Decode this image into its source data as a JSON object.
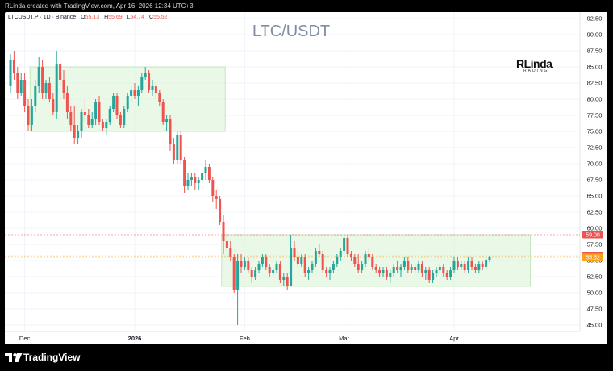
{
  "header": {
    "created_text": "RLinda created with TradingView.com, Apr 16, 2026 12:34 UTC+3"
  },
  "legend": {
    "symbol": "LTCUSDT.P · 1D · Binance",
    "open_label": "O",
    "open": "55.13",
    "high_label": "H",
    "high": "55.69",
    "low_label": "L",
    "low": "54.74",
    "close_label": "C",
    "close": "55.52"
  },
  "watermark": {
    "text": "LTC/USDT"
  },
  "logo": {
    "main": "RLinda",
    "sub": "RADING"
  },
  "brand": {
    "name": "TradingView",
    "icon": "tradingview-logo-icon"
  },
  "colors": {
    "up": "#26a69a",
    "down": "#ef5350",
    "zone": "#e1f5df",
    "zone_border": "#b9e3b5",
    "level_red": "#ef5350",
    "level_orange": "#f7a21b"
  },
  "chart_data": {
    "type": "candlestick",
    "title": "LTC/USDT",
    "symbol": "LTCUSDT.P",
    "interval": "1D",
    "exchange": "Binance",
    "ylim": [
      44,
      93.5
    ],
    "y_ticks": [
      "92.50",
      "90.00",
      "87.50",
      "85.00",
      "82.50",
      "80.00",
      "77.50",
      "75.00",
      "72.50",
      "70.00",
      "67.50",
      "65.00",
      "62.50",
      "60.00",
      "57.50",
      "55.00",
      "52.50",
      "50.00",
      "47.50",
      "45.00"
    ],
    "x_ticks": [
      {
        "label": "Dec",
        "index": 4
      },
      {
        "label": "2026",
        "index": 35
      },
      {
        "label": "Feb",
        "index": 66
      },
      {
        "label": "Mar",
        "index": 94
      },
      {
        "label": "Apr",
        "index": 125
      }
    ],
    "grid": true,
    "price_tags": [
      {
        "label": "59.00",
        "value": 59.0,
        "color": "#ef5350"
      },
      {
        "label": "55.71",
        "value": 55.71,
        "color": "#ef5350"
      },
      {
        "label": "55.52",
        "value": 55.52,
        "color": "#f7a21b"
      }
    ],
    "zones": [
      {
        "from_index": 6,
        "to_index": 60,
        "low": 75.0,
        "high": 85.0
      },
      {
        "from_index": 60,
        "to_index": 146,
        "low": 51.0,
        "high": 59.0
      }
    ],
    "candles": [
      [
        82.0,
        87.0,
        81.0,
        86.0
      ],
      [
        86.0,
        87.5,
        83.0,
        84.0
      ],
      [
        84.0,
        85.0,
        80.0,
        81.0
      ],
      [
        81.0,
        84.0,
        80.5,
        83.0
      ],
      [
        83.0,
        84.0,
        78.0,
        79.0
      ],
      [
        79.0,
        80.0,
        75.0,
        76.0
      ],
      [
        76.0,
        80.0,
        75.0,
        79.0
      ],
      [
        79.0,
        83.0,
        78.0,
        82.0
      ],
      [
        82.0,
        86.5,
        81.0,
        85.0
      ],
      [
        85.0,
        86.0,
        80.0,
        81.0
      ],
      [
        81.0,
        83.0,
        80.0,
        82.5
      ],
      [
        82.5,
        83.5,
        79.5,
        80.0
      ],
      [
        80.0,
        81.0,
        77.5,
        78.0
      ],
      [
        78.0,
        87.5,
        77.0,
        85.5
      ],
      [
        85.5,
        86.0,
        82.0,
        83.0
      ],
      [
        83.0,
        84.5,
        80.0,
        81.0
      ],
      [
        81.0,
        82.0,
        77.0,
        78.0
      ],
      [
        78.0,
        79.0,
        75.0,
        76.0
      ],
      [
        76.0,
        79.0,
        73.0,
        74.0
      ],
      [
        74.0,
        76.0,
        73.0,
        75.0
      ],
      [
        75.0,
        78.5,
        74.0,
        78.0
      ],
      [
        78.0,
        80.0,
        76.5,
        77.5
      ],
      [
        77.5,
        78.5,
        75.5,
        76.0
      ],
      [
        76.0,
        78.0,
        75.5,
        77.0
      ],
      [
        77.0,
        80.0,
        76.0,
        79.5
      ],
      [
        79.5,
        80.5,
        76.0,
        76.5
      ],
      [
        76.5,
        77.0,
        75.0,
        75.5
      ],
      [
        75.5,
        77.0,
        74.5,
        76.5
      ],
      [
        76.5,
        79.0,
        76.0,
        78.5
      ],
      [
        78.5,
        81.0,
        78.0,
        80.5
      ],
      [
        80.5,
        81.0,
        77.0,
        77.5
      ],
      [
        77.5,
        78.0,
        75.5,
        76.0
      ],
      [
        76.0,
        79.0,
        75.5,
        78.5
      ],
      [
        78.5,
        81.0,
        78.0,
        80.5
      ],
      [
        80.5,
        82.0,
        79.5,
        81.5
      ],
      [
        81.5,
        82.5,
        80.0,
        80.5
      ],
      [
        80.5,
        82.0,
        79.0,
        81.5
      ],
      [
        81.5,
        84.0,
        81.0,
        83.5
      ],
      [
        83.5,
        85.0,
        83.0,
        84.0
      ],
      [
        84.0,
        84.5,
        81.0,
        81.5
      ],
      [
        81.5,
        83.0,
        80.5,
        82.0
      ],
      [
        82.0,
        82.5,
        80.0,
        81.0
      ],
      [
        81.0,
        81.5,
        79.0,
        79.5
      ],
      [
        79.5,
        80.0,
        76.0,
        76.5
      ],
      [
        76.5,
        77.5,
        75.0,
        77.0
      ],
      [
        77.0,
        77.5,
        72.0,
        73.0
      ],
      [
        73.0,
        74.0,
        70.0,
        70.5
      ],
      [
        70.5,
        75.0,
        70.0,
        74.5
      ],
      [
        74.5,
        75.0,
        70.0,
        70.5
      ],
      [
        70.5,
        71.0,
        65.5,
        66.5
      ],
      [
        66.5,
        68.5,
        66.0,
        67.5
      ],
      [
        67.5,
        68.5,
        66.5,
        68.0
      ],
      [
        68.0,
        68.5,
        66.0,
        67.0
      ],
      [
        67.0,
        68.0,
        66.0,
        67.5
      ],
      [
        67.5,
        69.0,
        67.0,
        68.5
      ],
      [
        68.5,
        70.5,
        67.5,
        69.5
      ],
      [
        69.5,
        70.0,
        67.0,
        67.5
      ],
      [
        67.5,
        68.0,
        64.0,
        65.0
      ],
      [
        65.0,
        66.0,
        63.0,
        64.5
      ],
      [
        64.5,
        65.0,
        60.5,
        61.0
      ],
      [
        61.0,
        62.0,
        56.0,
        58.0
      ],
      [
        58.0,
        59.5,
        56.5,
        57.0
      ],
      [
        57.0,
        58.0,
        55.0,
        55.5
      ],
      [
        55.5,
        56.0,
        50.0,
        50.5
      ],
      [
        50.5,
        56.0,
        45.0,
        55.0
      ],
      [
        55.0,
        56.0,
        53.0,
        54.0
      ],
      [
        54.0,
        55.5,
        53.5,
        55.0
      ],
      [
        55.0,
        55.5,
        53.0,
        53.5
      ],
      [
        53.5,
        54.0,
        51.5,
        52.5
      ],
      [
        52.5,
        54.0,
        52.0,
        53.5
      ],
      [
        53.5,
        55.0,
        53.0,
        54.5
      ],
      [
        54.5,
        56.0,
        54.0,
        55.5
      ],
      [
        55.5,
        56.0,
        53.5,
        54.0
      ],
      [
        54.0,
        54.5,
        52.5,
        53.0
      ],
      [
        53.0,
        54.0,
        52.5,
        53.5
      ],
      [
        53.5,
        55.0,
        53.0,
        54.5
      ],
      [
        54.5,
        55.0,
        51.5,
        52.0
      ],
      [
        52.0,
        53.0,
        51.0,
        52.5
      ],
      [
        52.5,
        53.0,
        50.5,
        51.0
      ],
      [
        51.0,
        59.0,
        51.0,
        57.0
      ],
      [
        57.0,
        58.0,
        55.0,
        55.5
      ],
      [
        55.5,
        56.5,
        54.0,
        54.5
      ],
      [
        54.5,
        56.0,
        54.0,
        55.5
      ],
      [
        55.5,
        56.0,
        52.5,
        53.0
      ],
      [
        53.0,
        54.0,
        52.0,
        53.5
      ],
      [
        53.5,
        55.0,
        53.0,
        54.5
      ],
      [
        54.5,
        57.0,
        54.0,
        56.5
      ],
      [
        56.5,
        57.5,
        55.5,
        56.0
      ],
      [
        56.0,
        56.5,
        53.0,
        53.5
      ],
      [
        53.5,
        54.0,
        52.5,
        53.0
      ],
      [
        53.0,
        54.0,
        52.0,
        53.5
      ],
      [
        53.5,
        55.0,
        53.0,
        54.5
      ],
      [
        54.5,
        56.0,
        54.0,
        55.5
      ],
      [
        55.5,
        57.0,
        55.0,
        56.5
      ],
      [
        56.5,
        59.0,
        56.0,
        58.5
      ],
      [
        58.5,
        59.0,
        55.5,
        56.0
      ],
      [
        56.0,
        56.5,
        55.0,
        55.5
      ],
      [
        55.5,
        56.0,
        54.0,
        54.5
      ],
      [
        54.5,
        56.0,
        53.0,
        53.5
      ],
      [
        53.5,
        55.0,
        53.0,
        54.5
      ],
      [
        54.5,
        56.5,
        54.0,
        56.0
      ],
      [
        56.0,
        57.0,
        55.0,
        55.5
      ],
      [
        55.5,
        56.0,
        53.5,
        54.0
      ],
      [
        54.0,
        54.5,
        53.0,
        53.5
      ],
      [
        53.5,
        54.0,
        52.5,
        53.0
      ],
      [
        53.0,
        54.0,
        52.5,
        53.5
      ],
      [
        53.5,
        54.0,
        52.0,
        52.5
      ],
      [
        52.5,
        53.5,
        51.5,
        53.0
      ],
      [
        53.0,
        54.5,
        52.5,
        54.0
      ],
      [
        54.0,
        55.0,
        53.0,
        53.5
      ],
      [
        53.5,
        54.5,
        52.5,
        54.0
      ],
      [
        54.0,
        55.5,
        53.5,
        55.0
      ],
      [
        55.0,
        55.5,
        53.0,
        53.5
      ],
      [
        53.5,
        54.5,
        53.0,
        54.0
      ],
      [
        54.0,
        54.5,
        53.0,
        53.5
      ],
      [
        53.5,
        55.0,
        53.0,
        54.5
      ],
      [
        54.5,
        55.0,
        52.5,
        53.0
      ],
      [
        53.0,
        54.0,
        52.0,
        53.5
      ],
      [
        53.5,
        54.0,
        51.5,
        52.0
      ],
      [
        52.0,
        53.5,
        51.5,
        53.0
      ],
      [
        53.0,
        54.0,
        52.5,
        53.5
      ],
      [
        53.5,
        54.5,
        53.0,
        54.0
      ],
      [
        54.0,
        54.5,
        52.5,
        53.0
      ],
      [
        53.0,
        53.5,
        52.0,
        52.5
      ],
      [
        52.5,
        54.0,
        52.0,
        53.5
      ],
      [
        53.5,
        55.5,
        53.0,
        55.0
      ],
      [
        55.0,
        55.5,
        53.5,
        54.0
      ],
      [
        54.0,
        55.0,
        53.5,
        54.5
      ],
      [
        54.5,
        55.0,
        53.0,
        53.5
      ],
      [
        53.5,
        55.5,
        53.0,
        55.0
      ],
      [
        55.0,
        55.5,
        53.5,
        54.0
      ],
      [
        54.0,
        54.5,
        53.0,
        53.5
      ],
      [
        53.5,
        55.0,
        53.0,
        54.5
      ],
      [
        54.5,
        55.0,
        53.5,
        54.0
      ],
      [
        54.0,
        55.5,
        53.5,
        55.13
      ],
      [
        55.13,
        55.69,
        54.74,
        55.52
      ]
    ]
  }
}
